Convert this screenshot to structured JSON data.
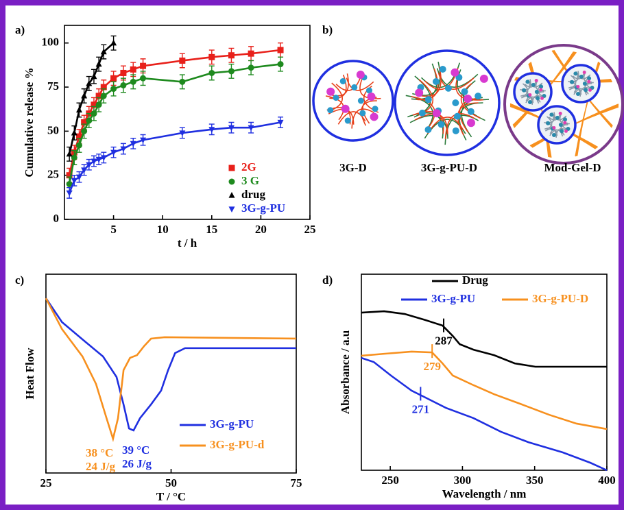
{
  "chart_data": [
    {
      "type": "scatter",
      "panel_label": "a)",
      "xlabel": "t / h",
      "ylabel": "Cumulative release %",
      "xlim": [
        0,
        25
      ],
      "xticks": [
        5,
        10,
        15,
        20,
        25
      ],
      "ylim": [
        0,
        110
      ],
      "yticks": [
        0,
        25,
        50,
        75,
        100
      ],
      "series": [
        {
          "name": "2G",
          "color": "#e8201a",
          "marker": "square",
          "x": [
            0.5,
            1,
            1.5,
            2,
            2.5,
            3,
            3.5,
            4,
            5,
            6,
            7,
            8,
            12,
            15,
            17,
            19,
            22
          ],
          "values": [
            25,
            38,
            47,
            55,
            60,
            65,
            70,
            75,
            80,
            83,
            85,
            87,
            90,
            92,
            93,
            94,
            96
          ],
          "errors": [
            4,
            4,
            4,
            4,
            4,
            4,
            4,
            4,
            4,
            4,
            4,
            4,
            4,
            4,
            4,
            4,
            4
          ]
        },
        {
          "name": "3 G",
          "color": "#1e8a1e",
          "marker": "circle",
          "x": [
            0.5,
            1,
            1.5,
            2,
            2.5,
            3,
            3.5,
            4,
            5,
            6,
            7,
            8,
            12,
            15,
            17,
            19,
            22
          ],
          "values": [
            20,
            35,
            42,
            50,
            56,
            60,
            65,
            70,
            74,
            76,
            78,
            80,
            78,
            83,
            84,
            86,
            88
          ],
          "errors": [
            4,
            4,
            4,
            4,
            4,
            4,
            4,
            4,
            4,
            4,
            4,
            4,
            4,
            4,
            4,
            4,
            4
          ]
        },
        {
          "name": "drug",
          "color": "#000000",
          "marker": "triangle",
          "x": [
            0.5,
            1,
            1.5,
            2,
            2.5,
            3,
            3.5,
            4,
            5
          ],
          "values": [
            37,
            49,
            62,
            70,
            77,
            81,
            88,
            95,
            100
          ],
          "errors": [
            4,
            4,
            4,
            4,
            4,
            4,
            4,
            4,
            4
          ]
        },
        {
          "name": "3G-g-PU",
          "color": "#1f2fe0",
          "marker": "down-triangle",
          "x": [
            0.5,
            1,
            1.5,
            2,
            2.5,
            3,
            3.5,
            4,
            5,
            6,
            7,
            8,
            12,
            15,
            17,
            19,
            22
          ],
          "values": [
            15,
            22,
            24,
            28,
            31,
            33,
            34,
            35,
            38,
            40,
            43,
            45,
            49,
            51,
            52,
            52,
            55
          ],
          "errors": [
            3,
            3,
            3,
            3,
            3,
            3,
            3,
            3,
            3,
            3,
            3,
            3,
            3,
            3,
            3,
            3,
            3
          ]
        }
      ]
    },
    {
      "type": "diagram",
      "panel_label": "b)",
      "labels": [
        "3G-D",
        "3G-g-PU-D",
        "Mod-Gel-D"
      ]
    },
    {
      "type": "line",
      "panel_label": "c)",
      "xlabel": "T / °C",
      "ylabel": "Heat Flow",
      "xlim": [
        25,
        75
      ],
      "xticks": [
        25,
        50,
        75
      ],
      "ylim": [
        0,
        100
      ],
      "series": [
        {
          "name": "3G-g-PU",
          "color": "#1f2fe0",
          "annotation": [
            "39 °C",
            "26 J/g"
          ],
          "x": [
            25,
            28.2,
            32.3,
            36.4,
            39.1,
            40.5,
            41.6,
            42.5,
            43.8,
            46.0,
            48.0,
            49.4,
            50.8,
            52.8,
            75
          ],
          "values": [
            87.9,
            75.9,
            67.2,
            58.6,
            48.3,
            34.5,
            22.4,
            21.4,
            27.6,
            34.5,
            41.4,
            51.7,
            60.3,
            62.8,
            62.8
          ]
        },
        {
          "name": "3G-g-PU-d",
          "color": "#f7901e",
          "annotation": [
            "38 °C",
            "24 J/g"
          ],
          "x": [
            25,
            28.2,
            32.3,
            35.0,
            37.1,
            38.4,
            39.4,
            40.5,
            41.8,
            43.2,
            44.6,
            46.0,
            48.7,
            75
          ],
          "values": [
            87.9,
            72.4,
            58.6,
            44.8,
            27.6,
            17.2,
            27.6,
            51.7,
            57.9,
            59.3,
            63.8,
            67.6,
            68.3,
            67.6
          ]
        }
      ]
    },
    {
      "type": "line",
      "panel_label": "d)",
      "xlabel": "Wavelength / nm",
      "ylabel": "Absorbance / a.u",
      "xlim": [
        230,
        400
      ],
      "xticks": [
        250,
        300,
        350,
        400
      ],
      "ylim": [
        0,
        100
      ],
      "series": [
        {
          "name": "Drug",
          "color": "#000000",
          "peak": 287,
          "x": [
            230,
            245.7,
            260,
            274.3,
            286.2,
            293.3,
            298.1,
            307.6,
            321.9,
            336.2,
            350.5,
            400
          ],
          "values": [
            80.4,
            81.1,
            79.7,
            76.6,
            73.8,
            68.5,
            64.3,
            61.5,
            58.7,
            54.5,
            52.8,
            52.8
          ]
        },
        {
          "name": "3G-g-PU",
          "color": "#1f2fe0",
          "peak": 271,
          "x": [
            230,
            238.6,
            250.5,
            264.8,
            274.3,
            288.6,
            307.6,
            326.7,
            345.7,
            369.5,
            388.6,
            400
          ],
          "values": [
            57.3,
            55.2,
            48.3,
            40.6,
            37.1,
            31.8,
            26.6,
            19.6,
            14.3,
            9.1,
            3.8,
            0
          ]
        },
        {
          "name": "3G-g-PU-D",
          "color": "#f7901e",
          "peak": 279,
          "x": [
            230,
            245.7,
            264.8,
            279,
            286.2,
            293.3,
            307.6,
            321.9,
            341,
            360,
            379,
            400
          ],
          "values": [
            58.4,
            59.4,
            60.5,
            60.1,
            54.5,
            48.3,
            43.4,
            38.8,
            33.6,
            28.3,
            23.8,
            21.0
          ]
        }
      ]
    }
  ]
}
